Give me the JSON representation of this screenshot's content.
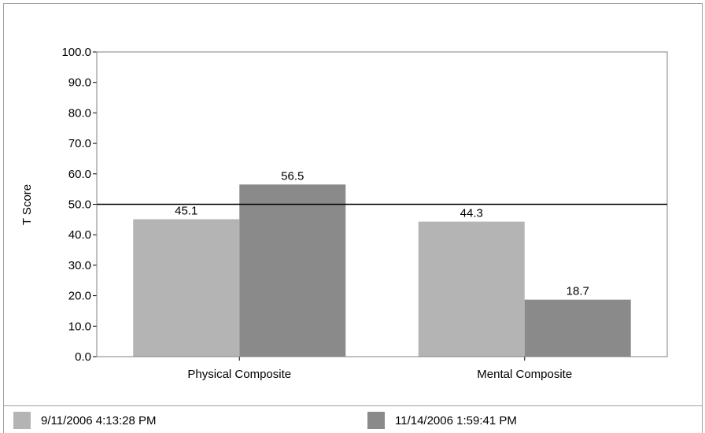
{
  "chart_data": {
    "type": "bar",
    "title": "",
    "xlabel": "",
    "ylabel": "T Score",
    "ylim": [
      0,
      100
    ],
    "yticks": [
      "0.0",
      "10.0",
      "20.0",
      "30.0",
      "40.0",
      "50.0",
      "60.0",
      "70.0",
      "80.0",
      "90.0",
      "100.0"
    ],
    "categories": [
      "Physical Composite",
      "Mental Composite"
    ],
    "series": [
      {
        "name": "9/11/2006 4:13:28 PM",
        "values": [
          45.1,
          44.3
        ],
        "labels": [
          "45.1",
          "44.3"
        ],
        "color": "#b4b4b4"
      },
      {
        "name": "11/14/2006 1:59:41 PM",
        "values": [
          56.5,
          18.7
        ],
        "labels": [
          "56.5",
          "18.7"
        ],
        "color": "#8a8a8a"
      }
    ],
    "reference_line": 50,
    "grid": false,
    "legend_position": "bottom"
  }
}
